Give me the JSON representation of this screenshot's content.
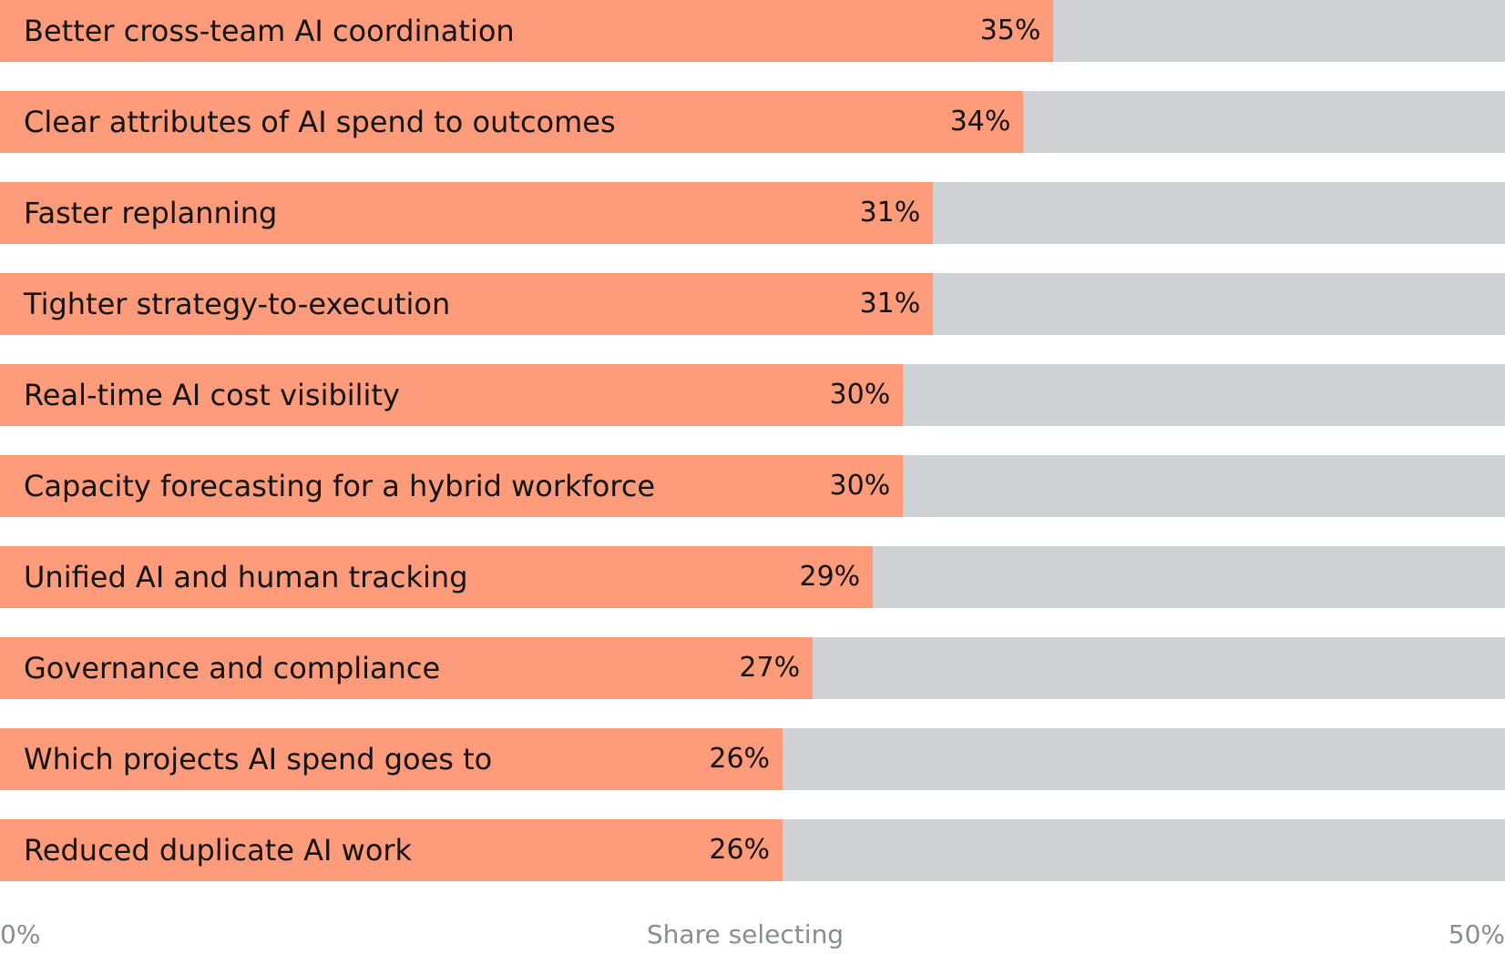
{
  "chart_data": {
    "type": "bar",
    "orientation": "horizontal",
    "categories": [
      "Better cross-team AI coordination",
      "Clear attributes of AI spend to outcomes",
      "Faster replanning",
      "Tighter strategy-to-execution",
      "Real-time AI cost visibility",
      "Capacity forecasting for a hybrid workforce",
      "Unified AI and human tracking",
      "Governance and compliance",
      "Which projects AI spend goes to",
      "Reduced duplicate AI work"
    ],
    "values": [
      35,
      34,
      31,
      31,
      30,
      30,
      29,
      27,
      26,
      26
    ],
    "value_labels": [
      "35%",
      "34%",
      "31%",
      "31%",
      "30%",
      "30%",
      "29%",
      "27%",
      "26%",
      "26%"
    ],
    "xlabel": "Share selecting",
    "xlim": [
      0,
      50
    ],
    "tick_labels": [
      "0%",
      "50%"
    ],
    "grid": false,
    "legend": "none",
    "colors": {
      "bar": "#fd9b7b",
      "track": "#d0d1d5",
      "text": "#141414",
      "axis_text": "#8a8c92"
    }
  }
}
